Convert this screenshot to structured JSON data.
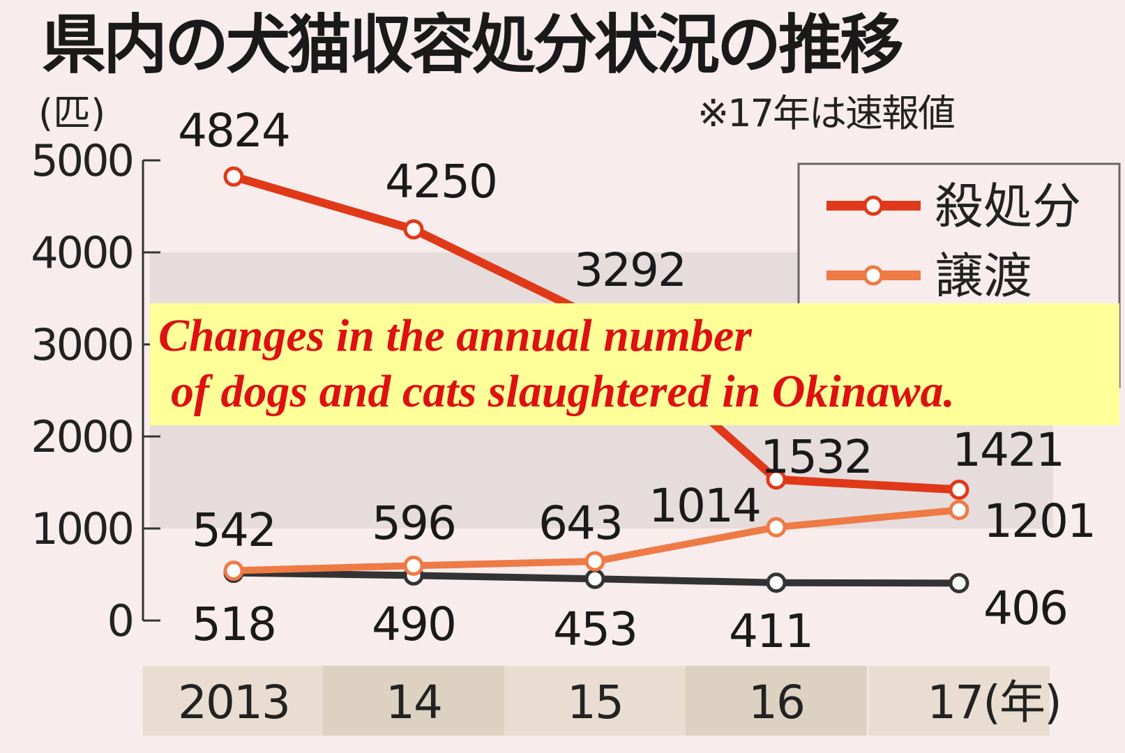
{
  "chart_data": {
    "type": "line",
    "title": "県内の犬猫収容処分状況の推移",
    "note": "※17年は速報値",
    "ylabel": "(匹)",
    "categories": [
      "2013",
      "14",
      "15",
      "16",
      "17(年)"
    ],
    "ylim": [
      0,
      5000
    ],
    "yticks": [
      "0",
      "1000",
      "2000",
      "3000",
      "4000",
      "5000"
    ],
    "grid": false,
    "legend_position": "top-right",
    "series": [
      {
        "name": "殺処分",
        "color": "#e0391a",
        "values": [
          4824,
          4250,
          3292,
          1532,
          1421
        ]
      },
      {
        "name": "譲渡",
        "color": "#ee7a45",
        "values": [
          542,
          596,
          643,
          1014,
          1201
        ]
      },
      {
        "color": "#333333",
        "values": [
          518,
          490,
          453,
          411,
          406
        ]
      }
    ]
  },
  "overlay": {
    "line1": "Changes in the annual number",
    "line2": "of dogs and cats slaughtered in Okinawa.",
    "background": "#ffff99",
    "text_color": "#dd1111"
  }
}
